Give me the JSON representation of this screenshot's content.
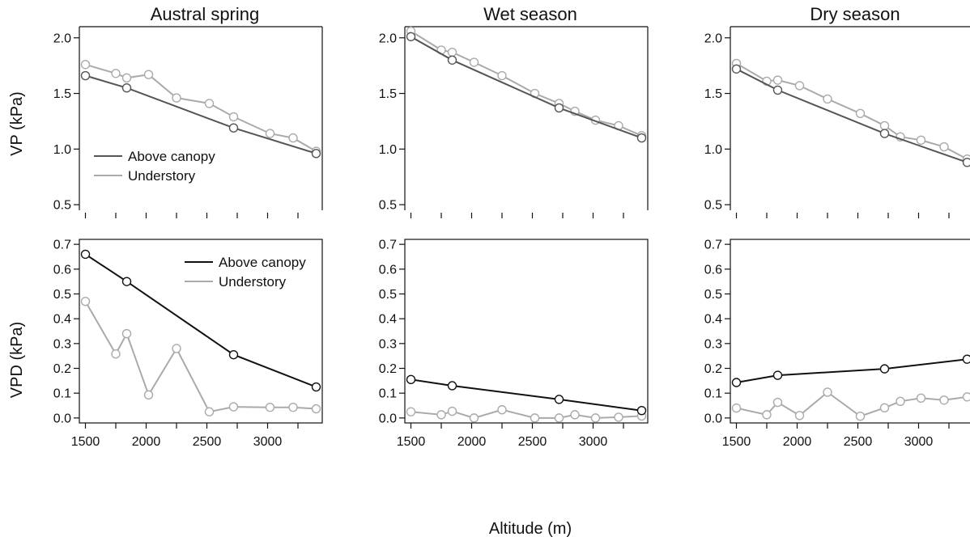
{
  "figure": {
    "column_titles": [
      "Austral spring",
      "Wet season",
      "Dry season"
    ],
    "ylabel_top": "VP (kPa)",
    "ylabel_bottom": "VPD (kPa)",
    "xlabel": "Altitude (m)"
  },
  "colors": {
    "vp_above": "#555555",
    "vp_under": "#aaaaaa",
    "vpd_above": "#111111",
    "vpd_under": "#aaaaaa"
  },
  "chart_data": [
    {
      "id": "vp-austral-spring",
      "type": "line",
      "title": "Austral spring",
      "ylabel": "VP (kPa)",
      "xlim": [
        1450,
        3450
      ],
      "ylim": [
        0.45,
        2.1
      ],
      "xticks": [
        1500,
        2000,
        2500,
        3000
      ],
      "yticks": [
        0.5,
        1.0,
        1.5,
        2.0
      ],
      "legend": {
        "location": "bottom-left",
        "entries": [
          "Above canopy",
          "Understory"
        ]
      },
      "series": [
        {
          "name": "Above canopy",
          "x": [
            1500,
            1840,
            2720,
            3400
          ],
          "y": [
            1.66,
            1.55,
            1.19,
            0.96
          ]
        },
        {
          "name": "Understory",
          "x": [
            1500,
            1750,
            1840,
            2020,
            2250,
            2520,
            2720,
            3020,
            3210,
            3400
          ],
          "y": [
            1.76,
            1.68,
            1.64,
            1.67,
            1.46,
            1.41,
            1.29,
            1.14,
            1.1,
            0.98
          ]
        }
      ]
    },
    {
      "id": "vp-wet-season",
      "type": "line",
      "title": "Wet season",
      "ylabel": "VP (kPa)",
      "xlim": [
        1450,
        3450
      ],
      "ylim": [
        0.45,
        2.1
      ],
      "xticks": [
        1500,
        2000,
        2500,
        3000
      ],
      "yticks": [
        0.5,
        1.0,
        1.5,
        2.0
      ],
      "series": [
        {
          "name": "Above canopy",
          "x": [
            1500,
            1840,
            2720,
            3400
          ],
          "y": [
            2.01,
            1.8,
            1.37,
            1.1
          ]
        },
        {
          "name": "Understory",
          "x": [
            1500,
            1750,
            1840,
            2020,
            2250,
            2520,
            2720,
            2850,
            3020,
            3210,
            3400
          ],
          "y": [
            2.06,
            1.89,
            1.87,
            1.78,
            1.66,
            1.5,
            1.41,
            1.34,
            1.26,
            1.21,
            1.12
          ]
        }
      ]
    },
    {
      "id": "vp-dry-season",
      "type": "line",
      "title": "Dry season",
      "ylabel": "VP (kPa)",
      "xlim": [
        1450,
        3450
      ],
      "ylim": [
        0.45,
        2.1
      ],
      "xticks": [
        1500,
        2000,
        2500,
        3000
      ],
      "yticks": [
        0.5,
        1.0,
        1.5,
        2.0
      ],
      "series": [
        {
          "name": "Above canopy",
          "x": [
            1500,
            1840,
            2720,
            3400
          ],
          "y": [
            1.72,
            1.53,
            1.14,
            0.88
          ]
        },
        {
          "name": "Understory",
          "x": [
            1500,
            1750,
            1840,
            2020,
            2250,
            2520,
            2720,
            2850,
            3020,
            3210,
            3400
          ],
          "y": [
            1.77,
            1.61,
            1.62,
            1.57,
            1.45,
            1.32,
            1.21,
            1.11,
            1.08,
            1.02,
            0.91
          ]
        }
      ]
    },
    {
      "id": "vpd-austral-spring",
      "type": "line",
      "title": "",
      "ylabel": "VPD (kPa)",
      "xlim": [
        1450,
        3450
      ],
      "ylim": [
        -0.02,
        0.72
      ],
      "xticks": [
        1500,
        2000,
        2500,
        3000
      ],
      "yticks": [
        0.0,
        0.1,
        0.2,
        0.3,
        0.4,
        0.5,
        0.6,
        0.7
      ],
      "legend": {
        "location": "top-right",
        "entries": [
          "Above canopy",
          "Understory"
        ]
      },
      "series": [
        {
          "name": "Above canopy",
          "x": [
            1500,
            1840,
            2720,
            3400
          ],
          "y": [
            0.66,
            0.55,
            0.255,
            0.125
          ]
        },
        {
          "name": "Understory",
          "x": [
            1500,
            1750,
            1840,
            2020,
            2250,
            2520,
            2720,
            3020,
            3210,
            3400
          ],
          "y": [
            0.47,
            0.258,
            0.34,
            0.093,
            0.28,
            0.025,
            0.045,
            0.043,
            0.043,
            0.037
          ]
        }
      ]
    },
    {
      "id": "vpd-wet-season",
      "type": "line",
      "title": "",
      "ylabel": "VPD (kPa)",
      "xlim": [
        1450,
        3450
      ],
      "ylim": [
        -0.02,
        0.72
      ],
      "xticks": [
        1500,
        2000,
        2500,
        3000
      ],
      "yticks": [
        0.0,
        0.1,
        0.2,
        0.3,
        0.4,
        0.5,
        0.6,
        0.7
      ],
      "series": [
        {
          "name": "Above canopy",
          "x": [
            1500,
            1840,
            2720,
            3400
          ],
          "y": [
            0.155,
            0.13,
            0.075,
            0.03
          ]
        },
        {
          "name": "Understory",
          "x": [
            1500,
            1750,
            1840,
            2020,
            2250,
            2520,
            2720,
            2850,
            3020,
            3210,
            3400
          ],
          "y": [
            0.025,
            0.013,
            0.027,
            0.0,
            0.033,
            0.0,
            0.0,
            0.013,
            0.0,
            0.003,
            0.008
          ]
        }
      ]
    },
    {
      "id": "vpd-dry-season",
      "type": "line",
      "title": "",
      "ylabel": "VPD (kPa)",
      "xlim": [
        1450,
        3450
      ],
      "ylim": [
        -0.02,
        0.72
      ],
      "xticks": [
        1500,
        2000,
        2500,
        3000
      ],
      "yticks": [
        0.0,
        0.1,
        0.2,
        0.3,
        0.4,
        0.5,
        0.6,
        0.7
      ],
      "series": [
        {
          "name": "Above canopy",
          "x": [
            1500,
            1840,
            2720,
            3400
          ],
          "y": [
            0.143,
            0.172,
            0.198,
            0.237
          ]
        },
        {
          "name": "Understory",
          "x": [
            1500,
            1750,
            1840,
            2020,
            2250,
            2520,
            2720,
            2850,
            3020,
            3210,
            3400
          ],
          "y": [
            0.04,
            0.013,
            0.063,
            0.01,
            0.104,
            0.007,
            0.041,
            0.067,
            0.08,
            0.072,
            0.085
          ]
        }
      ]
    }
  ]
}
